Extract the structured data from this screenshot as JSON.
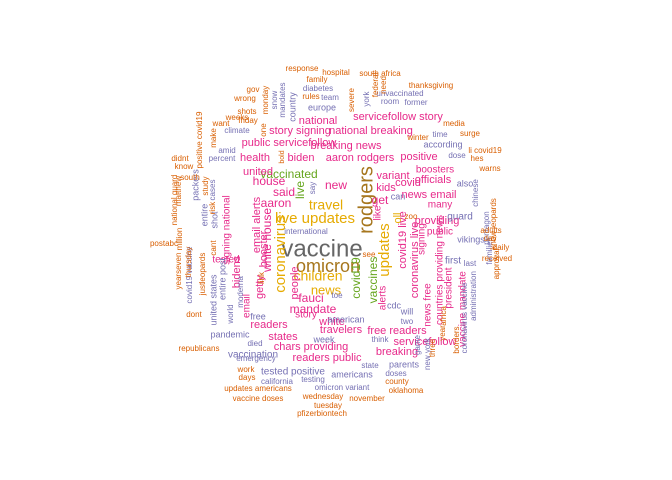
{
  "palette": {
    "orange": "#d95f02",
    "purple": "#7570b3",
    "magenta": "#e7298a",
    "green": "#66a61e",
    "gold": "#e6ab02",
    "brown": "#a6761d",
    "grey": "#666666"
  },
  "words": [
    {
      "text": "vaccine",
      "color": "grey"
    },
    {
      "text": "omicron",
      "color": "brown"
    },
    {
      "text": "rodgers",
      "color": "brown"
    },
    {
      "text": "live updates",
      "color": "gold"
    },
    {
      "text": "coronavirus",
      "color": "gold"
    },
    {
      "text": "children",
      "color": "gold"
    },
    {
      "text": "updates",
      "color": "gold"
    },
    {
      "text": "news",
      "color": "gold"
    },
    {
      "text": "travel",
      "color": "gold"
    },
    {
      "text": "covid19",
      "color": "green"
    },
    {
      "text": "vaccines",
      "color": "green"
    },
    {
      "text": "vaccinated",
      "color": "green"
    },
    {
      "text": "live",
      "color": "green"
    },
    {
      "text": "oll",
      "color": "gold"
    },
    {
      "text": "new",
      "color": "magenta"
    },
    {
      "text": "get",
      "color": "magenta"
    },
    {
      "text": "kids",
      "color": "magenta"
    },
    {
      "text": "said",
      "color": "magenta"
    },
    {
      "text": "aaron",
      "color": "magenta"
    },
    {
      "text": "house",
      "color": "magenta"
    },
    {
      "text": "white house",
      "color": "magenta"
    },
    {
      "text": "booster",
      "color": "magenta"
    },
    {
      "text": "fauci",
      "color": "magenta"
    },
    {
      "text": "mandate",
      "color": "magenta"
    },
    {
      "text": "white",
      "color": "magenta"
    },
    {
      "text": "people",
      "color": "magenta"
    },
    {
      "text": "variant",
      "color": "magenta"
    },
    {
      "text": "covid",
      "color": "magenta"
    },
    {
      "text": "biden",
      "color": "magenta"
    },
    {
      "text": "aaron rodgers",
      "color": "magenta"
    },
    {
      "text": "positive",
      "color": "magenta"
    },
    {
      "text": "national",
      "color": "magenta"
    },
    {
      "text": "national breaking",
      "color": "magenta"
    },
    {
      "text": "servicefollow story",
      "color": "magenta"
    },
    {
      "text": "story signing",
      "color": "magenta"
    },
    {
      "text": "breaking news",
      "color": "magenta"
    },
    {
      "text": "public servicefollow",
      "color": "magenta"
    },
    {
      "text": "health",
      "color": "magenta"
    },
    {
      "text": "united",
      "color": "magenta"
    },
    {
      "text": "email alerts",
      "color": "magenta"
    },
    {
      "text": "signing national",
      "color": "magenta"
    },
    {
      "text": "getty",
      "color": "magenta"
    },
    {
      "text": "tested",
      "color": "magenta"
    },
    {
      "text": "bidens",
      "color": "magenta"
    },
    {
      "text": "email",
      "color": "magenta"
    },
    {
      "text": "readers",
      "color": "magenta"
    },
    {
      "text": "states",
      "color": "magenta"
    },
    {
      "text": "chars providing",
      "color": "magenta"
    },
    {
      "text": "travelers",
      "color": "magenta"
    },
    {
      "text": "free readers",
      "color": "magenta"
    },
    {
      "text": "readers public",
      "color": "magenta"
    },
    {
      "text": "servicefollow",
      "color": "magenta"
    },
    {
      "text": "breaking",
      "color": "magenta"
    },
    {
      "text": "news email",
      "color": "magenta"
    },
    {
      "text": "officials",
      "color": "magenta"
    },
    {
      "text": "boosters",
      "color": "magenta"
    },
    {
      "text": "many",
      "color": "magenta"
    },
    {
      "text": "providing",
      "color": "magenta"
    },
    {
      "text": "public",
      "color": "magenta"
    },
    {
      "text": "covid19 live",
      "color": "magenta"
    },
    {
      "text": "coronavirus live",
      "color": "magenta"
    },
    {
      "text": "news free",
      "color": "magenta"
    },
    {
      "text": "signing",
      "color": "magenta"
    },
    {
      "text": "countries providing news",
      "color": "magenta"
    },
    {
      "text": "alerts",
      "color": "magenta"
    },
    {
      "text": "like",
      "color": "magenta"
    },
    {
      "text": "president",
      "color": "magenta"
    },
    {
      "text": "vaccine mandate",
      "color": "magenta"
    },
    {
      "text": "story",
      "color": "magenta"
    },
    {
      "text": "international",
      "color": "purple"
    },
    {
      "text": "tested positive",
      "color": "purple"
    },
    {
      "text": "vaccination",
      "color": "purple"
    },
    {
      "text": "pandemic",
      "color": "purple"
    },
    {
      "text": "week",
      "color": "purple"
    },
    {
      "text": "think",
      "color": "purple"
    },
    {
      "text": "cdc",
      "color": "purple"
    },
    {
      "text": "will",
      "color": "purple"
    },
    {
      "text": "two",
      "color": "purple"
    },
    {
      "text": "first",
      "color": "purple"
    },
    {
      "text": "guard",
      "color": "purple"
    },
    {
      "text": "vikings",
      "color": "purple"
    },
    {
      "text": "also",
      "color": "purple"
    },
    {
      "text": "can",
      "color": "purple"
    },
    {
      "text": "according",
      "color": "purple"
    },
    {
      "text": "europe",
      "color": "purple"
    },
    {
      "text": "team",
      "color": "purple"
    },
    {
      "text": "country",
      "color": "purple"
    },
    {
      "text": "unvaccinated",
      "color": "purple"
    },
    {
      "text": "room",
      "color": "purple"
    },
    {
      "text": "former",
      "color": "purple"
    },
    {
      "text": "diabetes",
      "color": "purple"
    },
    {
      "text": "mandates",
      "color": "purple"
    },
    {
      "text": "snow",
      "color": "purple"
    },
    {
      "text": "climate",
      "color": "purple"
    },
    {
      "text": "percent",
      "color": "purple"
    },
    {
      "text": "dose",
      "color": "purple"
    },
    {
      "text": "time",
      "color": "purple"
    },
    {
      "text": "amid",
      "color": "purple"
    },
    {
      "text": "cases",
      "color": "purple"
    },
    {
      "text": "shot",
      "color": "purple"
    },
    {
      "text": "entire",
      "color": "purple"
    },
    {
      "text": "packers",
      "color": "purple"
    },
    {
      "text": "world",
      "color": "purple"
    },
    {
      "text": "died",
      "color": "purple"
    },
    {
      "text": "emergency",
      "color": "purple"
    },
    {
      "text": "american",
      "color": "purple"
    },
    {
      "text": "americans",
      "color": "purple"
    },
    {
      "text": "parents",
      "color": "purple"
    },
    {
      "text": "state",
      "color": "purple"
    },
    {
      "text": "testing",
      "color": "purple"
    },
    {
      "text": "omicron variant",
      "color": "purple"
    },
    {
      "text": "california",
      "color": "purple"
    },
    {
      "text": "doses",
      "color": "purple"
    },
    {
      "text": "free",
      "color": "purple"
    },
    {
      "text": "say",
      "color": "purple"
    },
    {
      "text": "toe",
      "color": "purple"
    },
    {
      "text": "last",
      "color": "purple"
    },
    {
      "text": "game",
      "color": "purple"
    },
    {
      "text": "new york",
      "color": "purple"
    },
    {
      "text": "york",
      "color": "purple"
    },
    {
      "text": "administration",
      "color": "purple"
    },
    {
      "text": "pentagon",
      "color": "purple"
    },
    {
      "text": "chinese",
      "color": "purple"
    },
    {
      "text": "families",
      "color": "purple"
    },
    {
      "text": "coronavirus vaccine",
      "color": "purple"
    },
    {
      "text": "united states",
      "color": "purple"
    },
    {
      "text": "entire post",
      "color": "purple"
    },
    {
      "text": "moderna",
      "color": "purple"
    },
    {
      "text": "covid19 vaccine",
      "color": "purple"
    },
    {
      "text": "south africa",
      "color": "orange"
    },
    {
      "text": "hospital",
      "color": "orange"
    },
    {
      "text": "family",
      "color": "orange"
    },
    {
      "text": "response",
      "color": "orange"
    },
    {
      "text": "gov",
      "color": "orange"
    },
    {
      "text": "federal",
      "color": "orange"
    },
    {
      "text": "need",
      "color": "orange"
    },
    {
      "text": "thanksgiving",
      "color": "orange"
    },
    {
      "text": "wrong",
      "color": "orange"
    },
    {
      "text": "shots",
      "color": "orange"
    },
    {
      "text": "weeks",
      "color": "orange"
    },
    {
      "text": "want",
      "color": "orange"
    },
    {
      "text": "friday",
      "color": "orange"
    },
    {
      "text": "make",
      "color": "orange"
    },
    {
      "text": "monday",
      "color": "orange"
    },
    {
      "text": "rules",
      "color": "orange"
    },
    {
      "text": "severe",
      "color": "orange"
    },
    {
      "text": "media",
      "color": "orange"
    },
    {
      "text": "winter",
      "color": "orange"
    },
    {
      "text": "surge",
      "color": "orange"
    },
    {
      "text": "hes",
      "color": "orange"
    },
    {
      "text": "li covid19",
      "color": "orange"
    },
    {
      "text": "warns",
      "color": "orange"
    },
    {
      "text": "didnt",
      "color": "orange"
    },
    {
      "text": "know",
      "color": "orange"
    },
    {
      "text": "positive covid19",
      "color": "orange"
    },
    {
      "text": "study",
      "color": "orange"
    },
    {
      "text": "risk",
      "color": "orange"
    },
    {
      "text": "national guard",
      "color": "orange"
    },
    {
      "text": "million",
      "color": "orange"
    },
    {
      "text": "matthew",
      "color": "orange"
    },
    {
      "text": "south",
      "color": "orange"
    },
    {
      "text": "postabc",
      "color": "orange"
    },
    {
      "text": "thursday",
      "color": "orange"
    },
    {
      "text": "yearseven",
      "color": "orange"
    },
    {
      "text": "dont",
      "color": "orange"
    },
    {
      "text": "republicans",
      "color": "orange"
    },
    {
      "text": "work",
      "color": "orange"
    },
    {
      "text": "days",
      "color": "orange"
    },
    {
      "text": "updates americans",
      "color": "orange"
    },
    {
      "text": "vaccine doses",
      "color": "orange"
    },
    {
      "text": "wednesday",
      "color": "orange"
    },
    {
      "text": "tuesday",
      "color": "orange"
    },
    {
      "text": "november",
      "color": "orange"
    },
    {
      "text": "pfizerbiontech",
      "color": "orange"
    },
    {
      "text": "oklahoma",
      "color": "orange"
    },
    {
      "text": "county",
      "color": "orange"
    },
    {
      "text": "three",
      "color": "orange"
    },
    {
      "text": "africa",
      "color": "orange"
    },
    {
      "text": "borders",
      "color": "orange"
    },
    {
      "text": "year",
      "color": "orange"
    },
    {
      "text": "approval",
      "color": "orange"
    },
    {
      "text": "know leopards",
      "color": "orange"
    },
    {
      "text": "adults",
      "color": "orange"
    },
    {
      "text": "day",
      "color": "orange"
    },
    {
      "text": "daily",
      "color": "orange"
    },
    {
      "text": "received",
      "color": "orange"
    },
    {
      "text": "zoo",
      "color": "orange"
    },
    {
      "text": "see",
      "color": "orange"
    },
    {
      "text": "just",
      "color": "orange"
    },
    {
      "text": "leopards",
      "color": "orange"
    },
    {
      "text": "cant",
      "color": "orange"
    },
    {
      "text": "link",
      "color": "orange"
    },
    {
      "text": "bold",
      "color": "orange"
    },
    {
      "text": "one",
      "color": "orange"
    }
  ]
}
